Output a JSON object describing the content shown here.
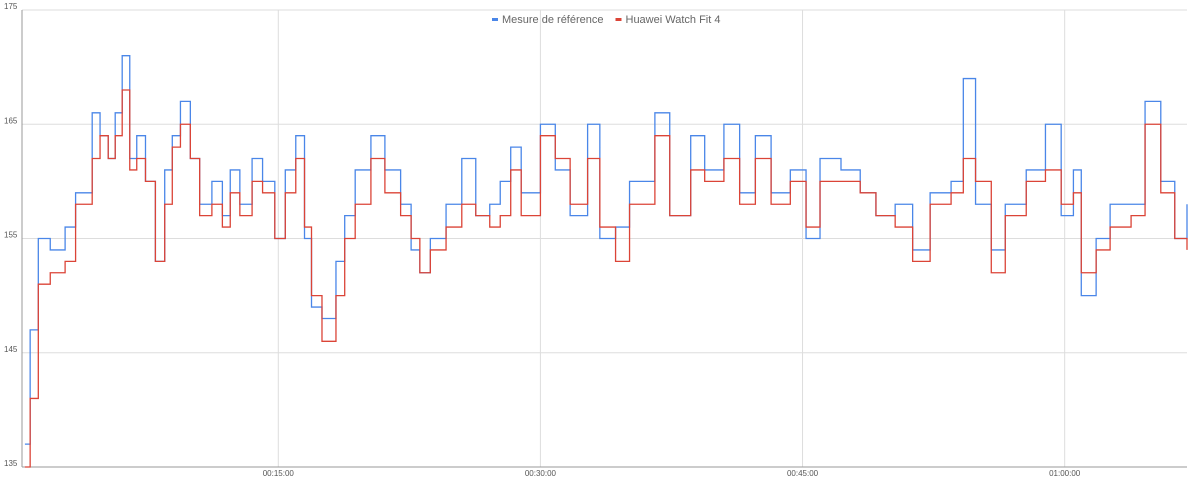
{
  "chart_data": {
    "type": "step-line",
    "x": [
      "00:00:30",
      "00:00:48",
      "00:01:16",
      "00:01:57",
      "00:02:48",
      "00:03:24",
      "00:03:57",
      "00:04:21",
      "00:04:48",
      "00:05:16",
      "00:05:40",
      "00:06:04",
      "00:06:30",
      "00:06:54",
      "00:07:24",
      "00:07:58",
      "00:08:30",
      "00:08:56",
      "00:09:24",
      "00:09:58",
      "00:10:30",
      "00:11:12",
      "00:11:48",
      "00:12:15",
      "00:12:48",
      "00:13:30",
      "00:14:06",
      "00:14:48",
      "00:15:24",
      "00:16:00",
      "00:16:30",
      "00:16:54",
      "00:17:30",
      "00:18:18",
      "00:18:48",
      "00:19:24",
      "00:20:18",
      "00:21:06",
      "00:22:00",
      "00:22:36",
      "00:23:06",
      "00:23:42",
      "00:24:36",
      "00:25:30",
      "00:26:18",
      "00:27:06",
      "00:27:42",
      "00:28:18",
      "00:28:54",
      "00:30:00",
      "00:30:51",
      "00:31:42",
      "00:32:42",
      "00:33:24",
      "00:34:18",
      "00:35:06",
      "00:36:33",
      "00:37:24",
      "00:38:36",
      "00:39:24",
      "00:40:30",
      "00:41:24",
      "00:42:18",
      "00:43:12",
      "00:44:18",
      "00:45:12",
      "00:46:00",
      "00:47:12",
      "00:48:18",
      "00:49:12",
      "00:50:18",
      "00:51:18",
      "00:52:18",
      "00:53:30",
      "00:54:12",
      "00:54:54",
      "00:55:48",
      "00:56:36",
      "00:57:48",
      "00:58:54",
      "00:59:48",
      "01:00:30",
      "01:00:57",
      "01:01:48",
      "01:02:36",
      "01:03:48",
      "01:04:36",
      "01:05:30",
      "01:06:18",
      "01:07:00"
    ],
    "series": [
      {
        "name": "Mesure de référence",
        "color": "#4a86e8",
        "values": [
          137,
          147,
          155,
          154,
          156,
          159,
          159,
          166,
          164,
          162,
          166,
          171,
          162,
          164,
          160,
          153,
          161,
          164,
          167,
          162,
          158,
          160,
          157,
          161,
          158,
          162,
          160,
          155,
          161,
          164,
          155,
          149,
          148,
          153,
          157,
          161,
          164,
          161,
          158,
          154,
          152,
          155,
          158,
          162,
          157,
          158,
          160,
          163,
          159,
          165,
          161,
          157,
          165,
          155,
          156,
          160,
          166,
          157,
          164,
          161,
          165,
          159,
          164,
          159,
          161,
          155,
          162,
          161,
          159,
          157,
          158,
          154,
          159,
          160,
          169,
          158,
          154,
          158,
          161,
          165,
          157,
          161,
          150,
          155,
          158,
          158,
          167,
          160,
          155,
          158
        ]
      },
      {
        "name": "Huawei Watch Fit 4",
        "color": "#db4437",
        "values": [
          135,
          141,
          151,
          152,
          153,
          158,
          158,
          162,
          164,
          162,
          164,
          168,
          161,
          162,
          160,
          153,
          158,
          163,
          165,
          162,
          157,
          158,
          156,
          159,
          157,
          160,
          159,
          155,
          159,
          162,
          156,
          150,
          146,
          150,
          155,
          158,
          162,
          159,
          157,
          155,
          152,
          154,
          156,
          158,
          157,
          156,
          157,
          161,
          157,
          164,
          162,
          158,
          162,
          156,
          153,
          158,
          164,
          157,
          161,
          160,
          162,
          158,
          162,
          158,
          160,
          156,
          160,
          160,
          159,
          157,
          156,
          153,
          158,
          159,
          162,
          160,
          152,
          157,
          160,
          161,
          158,
          159,
          152,
          154,
          156,
          157,
          165,
          159,
          155,
          154
        ]
      }
    ],
    "xlim": [
      "00:00:20",
      "01:07:00"
    ],
    "xticks": [
      "00:15:00",
      "00:30:00",
      "00:45:00",
      "01:00:00"
    ],
    "ylim": [
      135,
      175
    ],
    "yticks": [
      135,
      145,
      155,
      165,
      175
    ],
    "grid": true,
    "legend": "top"
  }
}
